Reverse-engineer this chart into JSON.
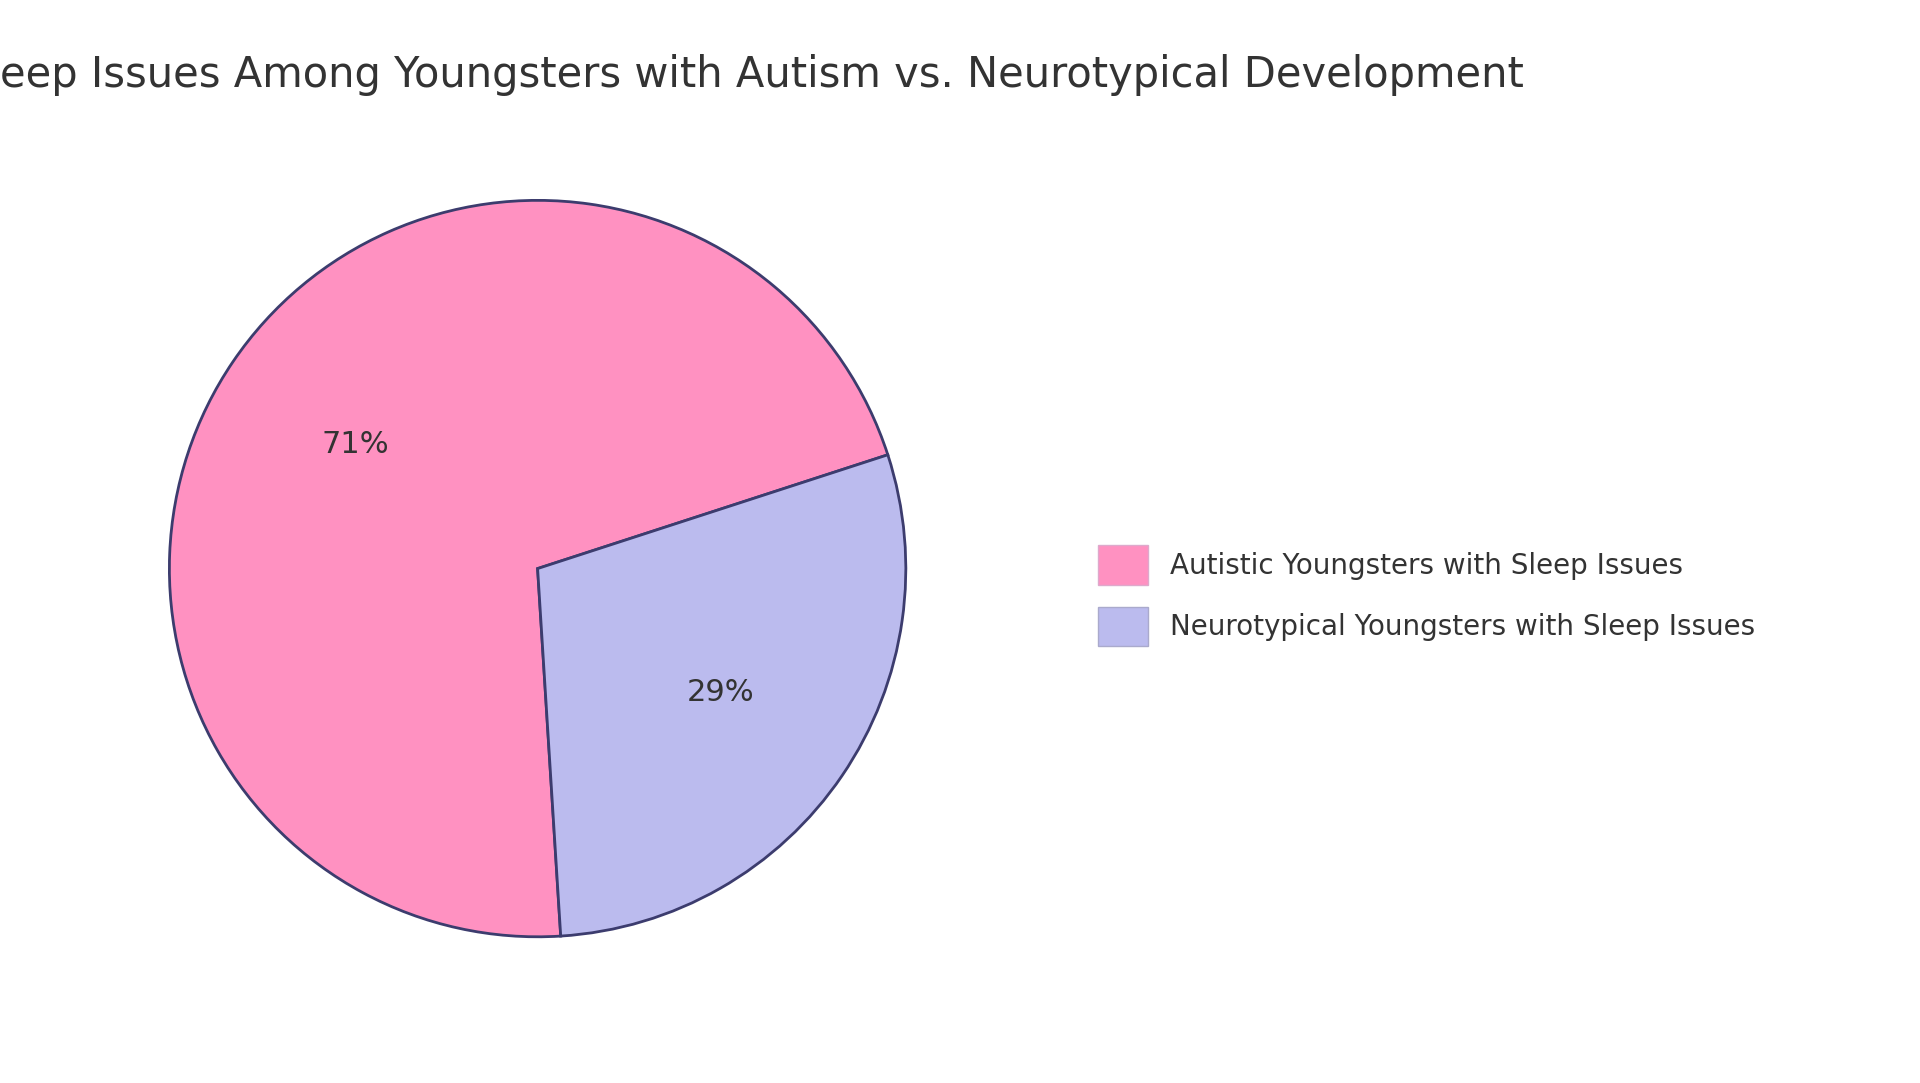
{
  "title": "Sleep Issues Among Youngsters with Autism vs. Neurotypical Development",
  "slices": [
    71,
    29
  ],
  "labels": [
    "Autistic Youngsters with Sleep Issues",
    "Neurotypical Youngsters with Sleep Issues"
  ],
  "colors": [
    "#FF91C1",
    "#BBBBEE"
  ],
  "edge_color": "#3C3C6E",
  "edge_width": 2.0,
  "autopct_values": [
    "71%",
    "29%"
  ],
  "text_color": "#333333",
  "background_color": "#FFFFFF",
  "title_fontsize": 30,
  "autopct_fontsize": 22,
  "legend_fontsize": 20,
  "startangle": 18
}
